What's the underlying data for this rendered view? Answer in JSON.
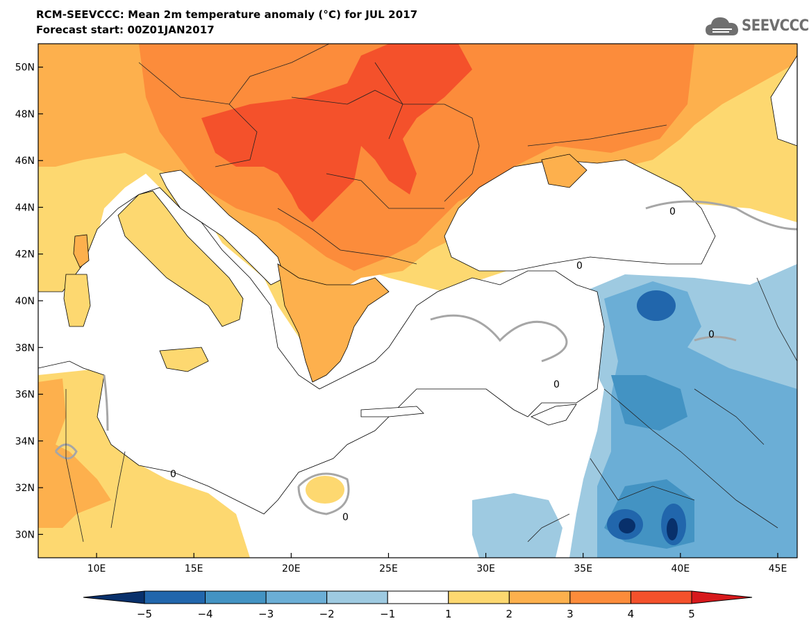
{
  "title": {
    "line1": "RCM-SEEVCCC: Mean 2m temperature anomaly (°C) for JUL 2017",
    "line2": "Forecast start: 00Z01JAN2017"
  },
  "logo": {
    "text": "SEEVCCC",
    "icon": "cloud-icon",
    "color": "#6f6f6f"
  },
  "map": {
    "lon_range": [
      7,
      46
    ],
    "lat_range": [
      29,
      51
    ],
    "lat_ticks": [
      {
        "value": 50,
        "label": "50N"
      },
      {
        "value": 48,
        "label": "48N"
      },
      {
        "value": 46,
        "label": "46N"
      },
      {
        "value": 44,
        "label": "44N"
      },
      {
        "value": 42,
        "label": "42N"
      },
      {
        "value": 40,
        "label": "40N"
      },
      {
        "value": 38,
        "label": "38N"
      },
      {
        "value": 36,
        "label": "36N"
      },
      {
        "value": 34,
        "label": "34N"
      },
      {
        "value": 32,
        "label": "32N"
      },
      {
        "value": 30,
        "label": "30N"
      }
    ],
    "lon_ticks": [
      {
        "value": 10,
        "label": "10E"
      },
      {
        "value": 15,
        "label": "15E"
      },
      {
        "value": 20,
        "label": "20E"
      },
      {
        "value": 25,
        "label": "25E"
      },
      {
        "value": 30,
        "label": "30E"
      },
      {
        "value": 35,
        "label": "35E"
      },
      {
        "value": 40,
        "label": "40E"
      },
      {
        "value": 45,
        "label": "45E"
      }
    ],
    "contour_label": "0"
  },
  "colorbar": {
    "bounds": [
      "−5",
      "−4",
      "−3",
      "−2",
      "−1",
      "1",
      "2",
      "3",
      "4",
      "5"
    ],
    "colors": [
      "#08306b",
      "#2166ac",
      "#4393c3",
      "#6baed6",
      "#9ecae1",
      "#ffffff",
      "#fdd870",
      "#fdb04d",
      "#fc8c3b",
      "#f4512b",
      "#d7191c"
    ]
  }
}
